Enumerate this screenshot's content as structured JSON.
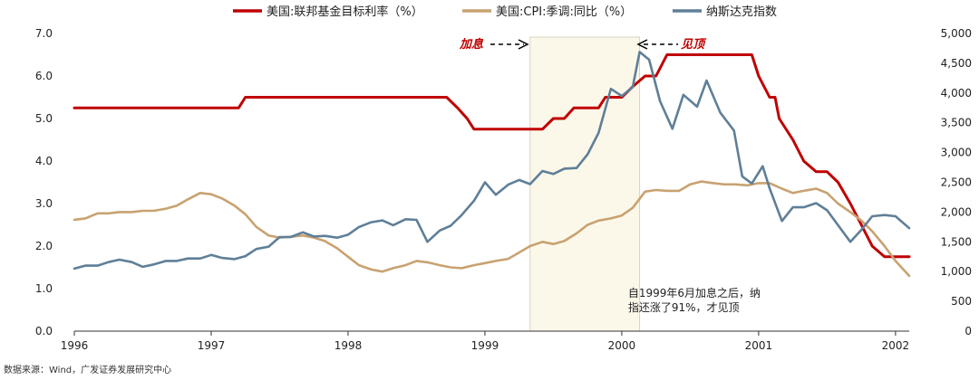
{
  "chart_data": {
    "type": "line",
    "title": "",
    "legend": {
      "placement": "top"
    },
    "x_axis": {
      "ticks": [
        "1996",
        "1997",
        "1998",
        "1999",
        "2000",
        "2001",
        "2002"
      ],
      "range": [
        1996.0,
        2002.1
      ]
    },
    "y_left": {
      "ticks": [
        "0.0",
        "1.0",
        "2.0",
        "3.0",
        "4.0",
        "5.0",
        "6.0",
        "7.0"
      ],
      "range": [
        0,
        7
      ]
    },
    "y_right": {
      "ticks": [
        "0",
        "500",
        "1,000",
        "1,500",
        "2,000",
        "2,500",
        "3,000",
        "3,500",
        "4,000",
        "4,500",
        "5,000"
      ],
      "range": [
        0,
        5000
      ]
    },
    "series": [
      {
        "name": "美国:联邦基金目标利率（%）",
        "color": "#c00000",
        "axis": "left",
        "points": [
          [
            1996.0,
            5.25
          ],
          [
            1997.2,
            5.25
          ],
          [
            1997.25,
            5.5
          ],
          [
            1998.72,
            5.5
          ],
          [
            1998.8,
            5.25
          ],
          [
            1998.87,
            5.0
          ],
          [
            1998.92,
            4.75
          ],
          [
            1999.42,
            4.75
          ],
          [
            1999.5,
            5.0
          ],
          [
            1999.58,
            5.0
          ],
          [
            1999.65,
            5.25
          ],
          [
            1999.83,
            5.25
          ],
          [
            1999.88,
            5.5
          ],
          [
            2000.0,
            5.5
          ],
          [
            2000.08,
            5.75
          ],
          [
            2000.17,
            6.0
          ],
          [
            2000.25,
            6.0
          ],
          [
            2000.33,
            6.5
          ],
          [
            2000.95,
            6.5
          ],
          [
            2001.0,
            6.0
          ],
          [
            2001.08,
            5.5
          ],
          [
            2001.12,
            5.5
          ],
          [
            2001.15,
            5.0
          ],
          [
            2001.25,
            4.5
          ],
          [
            2001.33,
            4.0
          ],
          [
            2001.42,
            3.75
          ],
          [
            2001.5,
            3.75
          ],
          [
            2001.58,
            3.5
          ],
          [
            2001.67,
            3.0
          ],
          [
            2001.75,
            2.5
          ],
          [
            2001.83,
            2.0
          ],
          [
            2001.92,
            1.75
          ],
          [
            2002.1,
            1.75
          ]
        ]
      },
      {
        "name": "美国:CPI:季调:同比（%）",
        "color": "#c8a271",
        "axis": "left",
        "points": [
          [
            1996.0,
            2.62
          ],
          [
            1996.08,
            2.65
          ],
          [
            1996.17,
            2.77
          ],
          [
            1996.25,
            2.77
          ],
          [
            1996.33,
            2.8
          ],
          [
            1996.42,
            2.8
          ],
          [
            1996.5,
            2.83
          ],
          [
            1996.58,
            2.83
          ],
          [
            1996.67,
            2.88
          ],
          [
            1996.75,
            2.95
          ],
          [
            1996.83,
            3.1
          ],
          [
            1996.92,
            3.25
          ],
          [
            1997.0,
            3.22
          ],
          [
            1997.08,
            3.12
          ],
          [
            1997.17,
            2.95
          ],
          [
            1997.25,
            2.75
          ],
          [
            1997.33,
            2.45
          ],
          [
            1997.42,
            2.25
          ],
          [
            1997.5,
            2.2
          ],
          [
            1997.58,
            2.22
          ],
          [
            1997.67,
            2.25
          ],
          [
            1997.75,
            2.2
          ],
          [
            1997.83,
            2.12
          ],
          [
            1997.92,
            1.95
          ],
          [
            1998.0,
            1.75
          ],
          [
            1998.08,
            1.55
          ],
          [
            1998.17,
            1.45
          ],
          [
            1998.25,
            1.4
          ],
          [
            1998.33,
            1.48
          ],
          [
            1998.42,
            1.55
          ],
          [
            1998.5,
            1.65
          ],
          [
            1998.58,
            1.62
          ],
          [
            1998.67,
            1.55
          ],
          [
            1998.75,
            1.5
          ],
          [
            1998.83,
            1.48
          ],
          [
            1998.92,
            1.55
          ],
          [
            1999.0,
            1.6
          ],
          [
            1999.08,
            1.65
          ],
          [
            1999.17,
            1.7
          ],
          [
            1999.25,
            1.85
          ],
          [
            1999.33,
            2.0
          ],
          [
            1999.42,
            2.1
          ],
          [
            1999.5,
            2.05
          ],
          [
            1999.58,
            2.12
          ],
          [
            1999.67,
            2.3
          ],
          [
            1999.75,
            2.5
          ],
          [
            1999.83,
            2.6
          ],
          [
            1999.92,
            2.65
          ],
          [
            2000.0,
            2.72
          ],
          [
            2000.08,
            2.9
          ],
          [
            2000.17,
            3.28
          ],
          [
            2000.25,
            3.32
          ],
          [
            2000.33,
            3.3
          ],
          [
            2000.42,
            3.3
          ],
          [
            2000.5,
            3.45
          ],
          [
            2000.58,
            3.52
          ],
          [
            2000.67,
            3.48
          ],
          [
            2000.75,
            3.45
          ],
          [
            2000.83,
            3.45
          ],
          [
            2000.92,
            3.43
          ],
          [
            2001.0,
            3.48
          ],
          [
            2001.08,
            3.48
          ],
          [
            2001.17,
            3.35
          ],
          [
            2001.25,
            3.25
          ],
          [
            2001.33,
            3.3
          ],
          [
            2001.42,
            3.35
          ],
          [
            2001.5,
            3.25
          ],
          [
            2001.58,
            3.0
          ],
          [
            2001.67,
            2.8
          ],
          [
            2001.75,
            2.6
          ],
          [
            2001.83,
            2.35
          ],
          [
            2001.92,
            2.0
          ],
          [
            2002.0,
            1.65
          ],
          [
            2002.1,
            1.3
          ]
        ]
      },
      {
        "name": "纳斯达克指数",
        "color": "#5f7f98",
        "axis": "right",
        "points": [
          [
            1996.0,
            1050
          ],
          [
            1996.08,
            1100
          ],
          [
            1996.17,
            1100
          ],
          [
            1996.25,
            1160
          ],
          [
            1996.33,
            1200
          ],
          [
            1996.42,
            1160
          ],
          [
            1996.5,
            1080
          ],
          [
            1996.58,
            1120
          ],
          [
            1996.67,
            1180
          ],
          [
            1996.75,
            1180
          ],
          [
            1996.83,
            1220
          ],
          [
            1996.92,
            1220
          ],
          [
            1997.0,
            1280
          ],
          [
            1997.08,
            1230
          ],
          [
            1997.17,
            1210
          ],
          [
            1997.25,
            1260
          ],
          [
            1997.33,
            1380
          ],
          [
            1997.42,
            1420
          ],
          [
            1997.5,
            1580
          ],
          [
            1997.58,
            1580
          ],
          [
            1997.67,
            1660
          ],
          [
            1997.75,
            1590
          ],
          [
            1997.83,
            1600
          ],
          [
            1997.92,
            1570
          ],
          [
            1998.0,
            1620
          ],
          [
            1998.08,
            1750
          ],
          [
            1998.17,
            1830
          ],
          [
            1998.25,
            1860
          ],
          [
            1998.33,
            1780
          ],
          [
            1998.42,
            1880
          ],
          [
            1998.5,
            1870
          ],
          [
            1998.58,
            1500
          ],
          [
            1998.67,
            1690
          ],
          [
            1998.75,
            1770
          ],
          [
            1998.83,
            1950
          ],
          [
            1998.92,
            2190
          ],
          [
            1999.0,
            2500
          ],
          [
            1999.08,
            2290
          ],
          [
            1999.17,
            2460
          ],
          [
            1999.25,
            2540
          ],
          [
            1999.33,
            2470
          ],
          [
            1999.42,
            2690
          ],
          [
            1999.5,
            2640
          ],
          [
            1999.58,
            2730
          ],
          [
            1999.67,
            2740
          ],
          [
            1999.75,
            2970
          ],
          [
            1999.83,
            3330
          ],
          [
            1999.92,
            4070
          ],
          [
            2000.0,
            3950
          ],
          [
            2000.08,
            4100
          ],
          [
            2000.13,
            4690
          ],
          [
            2000.2,
            4560
          ],
          [
            2000.28,
            3860
          ],
          [
            2000.37,
            3400
          ],
          [
            2000.45,
            3970
          ],
          [
            2000.55,
            3770
          ],
          [
            2000.62,
            4210
          ],
          [
            2000.72,
            3670
          ],
          [
            2000.82,
            3370
          ],
          [
            2000.88,
            2600
          ],
          [
            2000.95,
            2480
          ],
          [
            2001.03,
            2770
          ],
          [
            2001.08,
            2400
          ],
          [
            2001.17,
            1850
          ],
          [
            2001.25,
            2080
          ],
          [
            2001.33,
            2080
          ],
          [
            2001.42,
            2150
          ],
          [
            2001.5,
            2030
          ],
          [
            2001.58,
            1780
          ],
          [
            2001.67,
            1500
          ],
          [
            2001.75,
            1700
          ],
          [
            2001.83,
            1930
          ],
          [
            2001.92,
            1950
          ],
          [
            2002.0,
            1930
          ],
          [
            2002.1,
            1730
          ]
        ]
      }
    ],
    "annotations": {
      "shade_range": [
        1999.33,
        2000.13
      ],
      "hike_label": "加息",
      "top_label": "见顶",
      "note_lines": [
        "自1999年6月加息之后，纳",
        "指还涨了91%，才见顶"
      ],
      "note_x": 1999.9,
      "source": "数据来源：Wind，广发证券发展研究中心"
    }
  }
}
